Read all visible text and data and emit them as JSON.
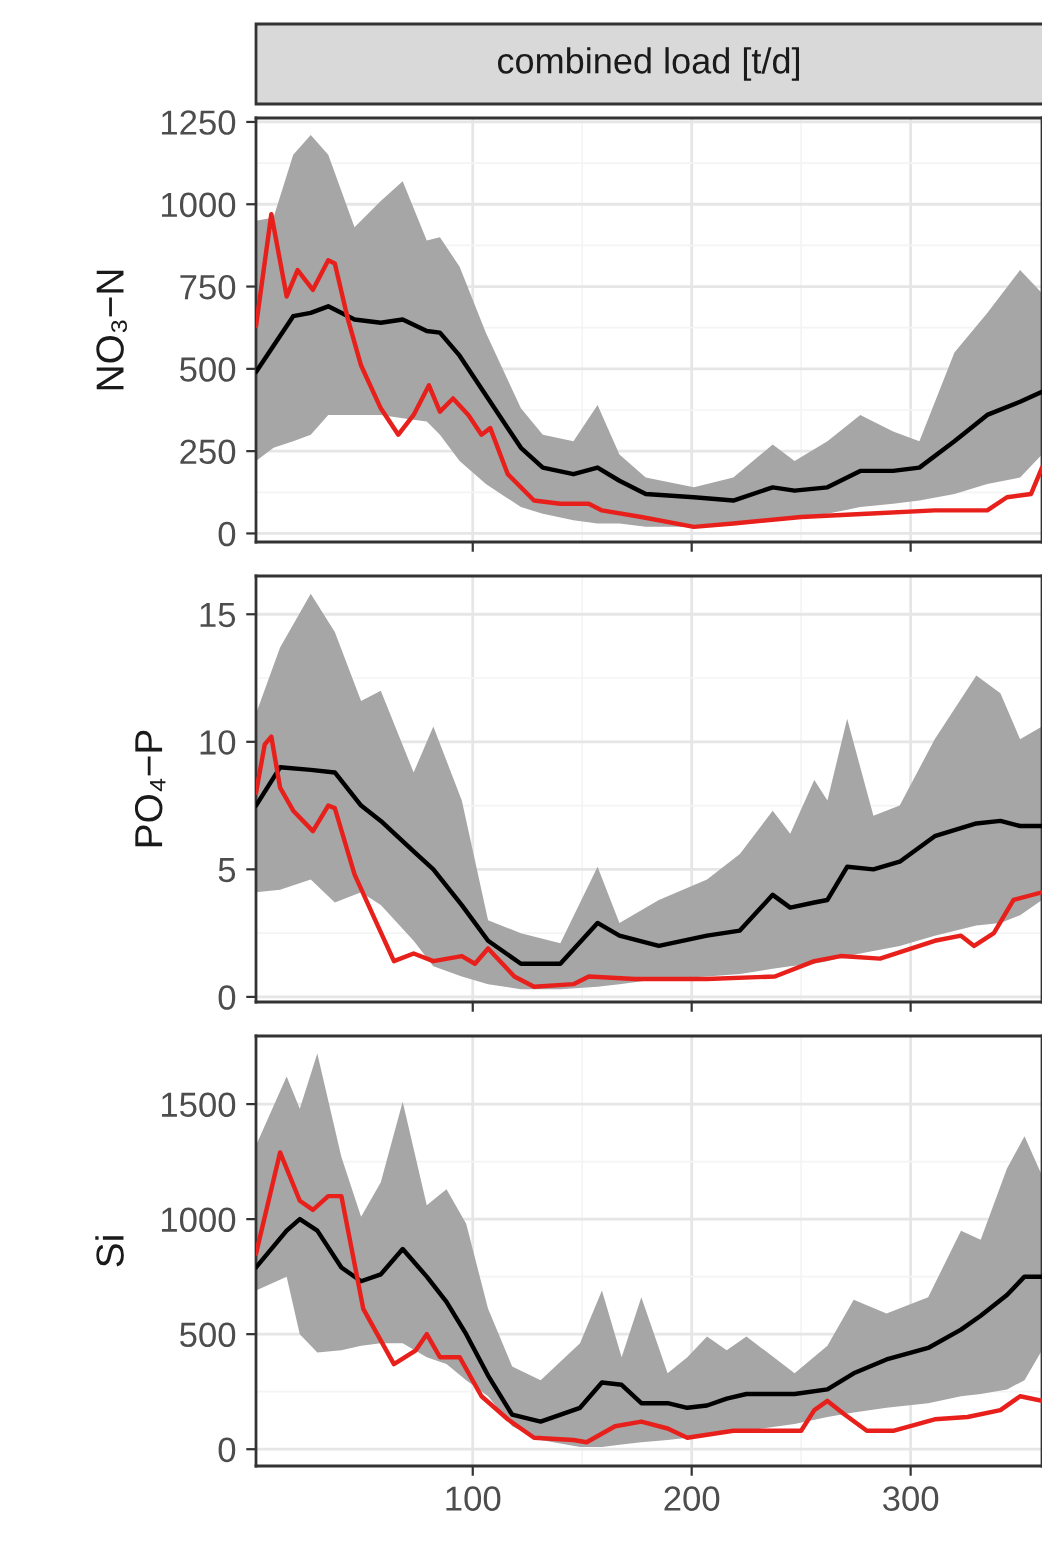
{
  "chart_data": [
    {
      "type": "line",
      "title": "combined load [t/d]",
      "ylabel": "NO₃−N",
      "xlim": [
        1,
        360
      ],
      "ylim": [
        -26,
        1262
      ],
      "xticks": [
        100,
        200,
        300
      ],
      "yticks": [
        0,
        250,
        500,
        750,
        1000,
        1250
      ],
      "tick_labels": "y",
      "grid": true,
      "series": [
        {
          "color": "#000000",
          "x": [
            1,
            9,
            18,
            26,
            34,
            46,
            58,
            68,
            79,
            85,
            94,
            106,
            122,
            132,
            146,
            157,
            167,
            179,
            201,
            219,
            237,
            247,
            262,
            277,
            292,
            304,
            320,
            335,
            350,
            360
          ],
          "values": [
            490,
            570,
            660,
            670,
            690,
            650,
            640,
            650,
            615,
            610,
            540,
            420,
            260,
            200,
            180,
            200,
            160,
            120,
            110,
            100,
            140,
            130,
            140,
            190,
            190,
            200,
            280,
            360,
            400,
            430
          ],
          "upper": [
            950,
            960,
            1150,
            1210,
            1150,
            930,
            1010,
            1070,
            890,
            900,
            810,
            610,
            380,
            300,
            280,
            390,
            240,
            170,
            140,
            170,
            270,
            220,
            280,
            360,
            310,
            280,
            550,
            670,
            800,
            730
          ],
          "lower": [
            220,
            260,
            280,
            300,
            360,
            360,
            360,
            350,
            340,
            300,
            220,
            150,
            80,
            60,
            40,
            30,
            30,
            20,
            20,
            30,
            40,
            50,
            60,
            80,
            90,
            100,
            120,
            150,
            170,
            240
          ]
        },
        {
          "color": "#e8201c",
          "x": [
            1,
            8,
            15,
            20,
            27,
            34,
            37,
            43,
            49,
            58,
            66,
            73,
            80,
            85,
            91,
            98,
            104,
            108,
            116,
            128,
            140,
            153,
            159,
            177,
            201,
            219,
            250,
            280,
            311,
            335,
            344,
            355,
            360
          ],
          "values": [
            630,
            970,
            720,
            800,
            740,
            830,
            820,
            650,
            510,
            380,
            300,
            360,
            450,
            370,
            410,
            360,
            300,
            320,
            180,
            100,
            90,
            90,
            70,
            50,
            20,
            30,
            50,
            60,
            70,
            70,
            110,
            120,
            200
          ]
        }
      ]
    },
    {
      "type": "line",
      "ylabel": "PO₄−P",
      "xlim": [
        1,
        360
      ],
      "ylim": [
        -0.2,
        16.5
      ],
      "xticks": [
        100,
        200,
        300
      ],
      "yticks": [
        0,
        5,
        10,
        15
      ],
      "tick_labels": "y",
      "grid": true,
      "series": [
        {
          "color": "#000000",
          "x": [
            1,
            12,
            26,
            37,
            49,
            58,
            73,
            82,
            95,
            107,
            122,
            140,
            157,
            167,
            185,
            207,
            222,
            237,
            245,
            256,
            262,
            271,
            283,
            295,
            311,
            330,
            341,
            350,
            360
          ],
          "values": [
            7.5,
            9.0,
            8.9,
            8.8,
            7.5,
            6.9,
            5.7,
            5.0,
            3.6,
            2.2,
            1.3,
            1.3,
            2.9,
            2.4,
            2.0,
            2.4,
            2.6,
            4.0,
            3.5,
            3.7,
            3.8,
            5.1,
            5.0,
            5.3,
            6.3,
            6.8,
            6.9,
            6.7,
            6.7
          ],
          "upper": [
            11.1,
            13.7,
            15.8,
            14.3,
            11.6,
            12.0,
            8.8,
            10.6,
            7.7,
            3.0,
            2.5,
            2.1,
            5.1,
            2.9,
            3.8,
            4.6,
            5.6,
            7.3,
            6.4,
            8.5,
            7.7,
            10.9,
            7.1,
            7.5,
            10.1,
            12.6,
            11.9,
            10.1,
            10.6
          ],
          "lower": [
            4.1,
            4.2,
            4.6,
            3.7,
            4.1,
            3.6,
            2.2,
            1.2,
            0.8,
            0.5,
            0.3,
            0.3,
            0.4,
            0.5,
            0.7,
            0.8,
            0.9,
            1.1,
            1.2,
            1.3,
            1.4,
            1.6,
            1.8,
            2.0,
            2.4,
            2.8,
            2.9,
            3.2,
            3.8
          ]
        },
        {
          "color": "#e8201c",
          "x": [
            1,
            5,
            8,
            12,
            18,
            27,
            34,
            37,
            46,
            55,
            64,
            73,
            82,
            95,
            101,
            107,
            119,
            128,
            146,
            153,
            174,
            207,
            238,
            256,
            268,
            286,
            311,
            323,
            329,
            338,
            347,
            360
          ],
          "values": [
            8.0,
            9.9,
            10.2,
            8.2,
            7.3,
            6.5,
            7.5,
            7.4,
            4.8,
            3.1,
            1.4,
            1.7,
            1.4,
            1.6,
            1.3,
            1.9,
            0.8,
            0.4,
            0.5,
            0.8,
            0.7,
            0.7,
            0.8,
            1.4,
            1.6,
            1.5,
            2.2,
            2.4,
            2.0,
            2.5,
            3.8,
            4.1
          ]
        }
      ]
    },
    {
      "type": "line",
      "ylabel": "Si",
      "xlim": [
        1,
        360
      ],
      "ylim": [
        -73,
        1796
      ],
      "xticks": [
        100,
        200,
        300
      ],
      "yticks": [
        0,
        500,
        1000,
        1500
      ],
      "grid": true,
      "series": [
        {
          "color": "#000000",
          "x": [
            1,
            15,
            21,
            29,
            40,
            49,
            58,
            68,
            79,
            88,
            97,
            107,
            118,
            131,
            149,
            159,
            168,
            177,
            189,
            198,
            207,
            216,
            225,
            247,
            262,
            274,
            289,
            308,
            323,
            332,
            344,
            352,
            360
          ],
          "values": [
            790,
            950,
            1000,
            950,
            790,
            730,
            760,
            870,
            750,
            640,
            500,
            320,
            150,
            120,
            180,
            290,
            280,
            200,
            200,
            180,
            190,
            220,
            240,
            240,
            260,
            330,
            390,
            440,
            520,
            580,
            670,
            750,
            750
          ],
          "upper": [
            1320,
            1620,
            1480,
            1720,
            1270,
            1010,
            1160,
            1510,
            1060,
            1130,
            980,
            610,
            360,
            300,
            460,
            690,
            400,
            660,
            330,
            400,
            490,
            430,
            490,
            330,
            450,
            650,
            590,
            660,
            950,
            910,
            1220,
            1360,
            1190
          ],
          "lower": [
            690,
            750,
            500,
            420,
            430,
            450,
            460,
            460,
            400,
            370,
            300,
            230,
            100,
            40,
            10,
            10,
            20,
            30,
            40,
            50,
            60,
            70,
            80,
            110,
            140,
            160,
            180,
            200,
            230,
            240,
            260,
            300,
            430
          ]
        },
        {
          "color": "#e8201c",
          "x": [
            1,
            12,
            21,
            27,
            34,
            40,
            50,
            64,
            74,
            79,
            85,
            94,
            104,
            116,
            128,
            146,
            152,
            165,
            177,
            189,
            198,
            219,
            250,
            256,
            262,
            270,
            280,
            292,
            311,
            326,
            341,
            350,
            360
          ],
          "values": [
            850,
            1290,
            1080,
            1040,
            1100,
            1100,
            610,
            370,
            430,
            500,
            400,
            400,
            230,
            130,
            50,
            40,
            30,
            100,
            120,
            90,
            50,
            80,
            80,
            170,
            210,
            150,
            80,
            80,
            130,
            140,
            170,
            230,
            210
          ]
        }
      ]
    }
  ]
}
